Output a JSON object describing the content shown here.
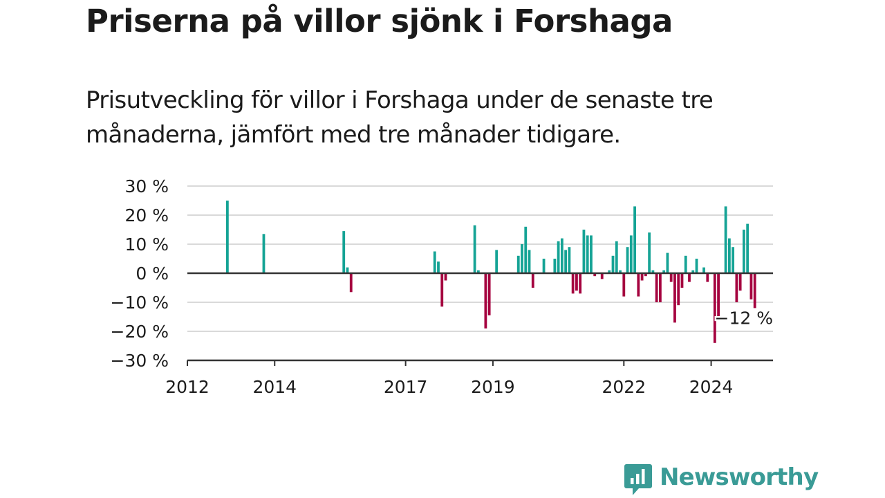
{
  "header": {
    "title": "Priserna på villor sjönk i Forshaga",
    "subtitle": "Prisutveckling för villor i Forshaga under de senaste tre månaderna, jämfört med tre månader tidigare."
  },
  "branding": {
    "name": "Newsworthy",
    "color": "#3a9b96",
    "icon": "newsworthy-logo-icon"
  },
  "colors": {
    "positive": "#15a395",
    "negative": "#a5033f",
    "grid": "#d9d9d9",
    "axis": "#333333"
  },
  "chart_data": {
    "type": "bar",
    "title": "Priserna på villor sjönk i Forshaga",
    "subtitle": "Prisutveckling för villor i Forshaga under de senaste tre månaderna, jämfört med tre månader tidigare.",
    "xlabel": "",
    "ylabel": "",
    "ylim": [
      -30,
      30
    ],
    "xlim": [
      "2012-01",
      "2025-06"
    ],
    "grid": true,
    "legend": "none",
    "y_ticks": [
      {
        "value": 30,
        "label": "30 %"
      },
      {
        "value": 20,
        "label": "20 %"
      },
      {
        "value": 10,
        "label": "10 %"
      },
      {
        "value": 0,
        "label": "0 %"
      },
      {
        "value": -10,
        "label": "−10 %"
      },
      {
        "value": -20,
        "label": "−20 %"
      },
      {
        "value": -30,
        "label": "−30 %"
      }
    ],
    "x_ticks": [
      {
        "value": "2012-01",
        "label": "2012"
      },
      {
        "value": "2014-01",
        "label": "2014"
      },
      {
        "value": "2017-01",
        "label": "2017"
      },
      {
        "value": "2019-01",
        "label": "2019"
      },
      {
        "value": "2022-01",
        "label": "2022"
      },
      {
        "value": "2024-01",
        "label": "2024"
      }
    ],
    "annotation": {
      "label": "−12 %",
      "date": "2025-05",
      "value": -12
    },
    "series": [
      {
        "values": [
          {
            "date": "2012-12",
            "value": 25
          },
          {
            "date": "2013-10",
            "value": 13.5
          },
          {
            "date": "2015-08",
            "value": 14.5
          },
          {
            "date": "2015-09",
            "value": 2
          },
          {
            "date": "2015-10",
            "value": -6.5
          },
          {
            "date": "2017-09",
            "value": 7.5
          },
          {
            "date": "2017-10",
            "value": 4
          },
          {
            "date": "2017-11",
            "value": -11.5
          },
          {
            "date": "2017-12",
            "value": -2.5
          },
          {
            "date": "2018-08",
            "value": 16.5
          },
          {
            "date": "2018-09",
            "value": 1
          },
          {
            "date": "2018-11",
            "value": -19
          },
          {
            "date": "2018-12",
            "value": -14.5
          },
          {
            "date": "2019-02",
            "value": 8
          },
          {
            "date": "2019-08",
            "value": 6
          },
          {
            "date": "2019-09",
            "value": 10
          },
          {
            "date": "2019-10",
            "value": 16
          },
          {
            "date": "2019-11",
            "value": 8
          },
          {
            "date": "2019-12",
            "value": -5
          },
          {
            "date": "2020-03",
            "value": 5
          },
          {
            "date": "2020-06",
            "value": 5
          },
          {
            "date": "2020-07",
            "value": 11
          },
          {
            "date": "2020-08",
            "value": 12
          },
          {
            "date": "2020-09",
            "value": 8
          },
          {
            "date": "2020-10",
            "value": 9
          },
          {
            "date": "2020-11",
            "value": -7
          },
          {
            "date": "2020-12",
            "value": -6
          },
          {
            "date": "2021-01",
            "value": -7
          },
          {
            "date": "2021-02",
            "value": 15
          },
          {
            "date": "2021-03",
            "value": 13
          },
          {
            "date": "2021-04",
            "value": 13
          },
          {
            "date": "2021-05",
            "value": -1
          },
          {
            "date": "2021-07",
            "value": -2
          },
          {
            "date": "2021-09",
            "value": 1
          },
          {
            "date": "2021-10",
            "value": 6
          },
          {
            "date": "2021-11",
            "value": 11
          },
          {
            "date": "2021-12",
            "value": 1
          },
          {
            "date": "2022-01",
            "value": -8
          },
          {
            "date": "2022-02",
            "value": 9
          },
          {
            "date": "2022-03",
            "value": 13
          },
          {
            "date": "2022-04",
            "value": 23
          },
          {
            "date": "2022-05",
            "value": -8
          },
          {
            "date": "2022-06",
            "value": -2.5
          },
          {
            "date": "2022-07",
            "value": -1
          },
          {
            "date": "2022-08",
            "value": 14
          },
          {
            "date": "2022-09",
            "value": 1
          },
          {
            "date": "2022-10",
            "value": -10
          },
          {
            "date": "2022-11",
            "value": -10
          },
          {
            "date": "2022-12",
            "value": 1
          },
          {
            "date": "2023-01",
            "value": 7
          },
          {
            "date": "2023-02",
            "value": -3
          },
          {
            "date": "2023-03",
            "value": -17
          },
          {
            "date": "2023-04",
            "value": -11
          },
          {
            "date": "2023-05",
            "value": -5
          },
          {
            "date": "2023-06",
            "value": 6
          },
          {
            "date": "2023-07",
            "value": -3
          },
          {
            "date": "2023-08",
            "value": 1
          },
          {
            "date": "2023-09",
            "value": 5
          },
          {
            "date": "2023-11",
            "value": 2
          },
          {
            "date": "2023-12",
            "value": -3
          },
          {
            "date": "2024-02",
            "value": -24
          },
          {
            "date": "2024-03",
            "value": -15
          },
          {
            "date": "2024-05",
            "value": 23
          },
          {
            "date": "2024-06",
            "value": 12
          },
          {
            "date": "2024-07",
            "value": 9
          },
          {
            "date": "2024-08",
            "value": -10
          },
          {
            "date": "2024-09",
            "value": -6
          },
          {
            "date": "2024-10",
            "value": 15
          },
          {
            "date": "2024-11",
            "value": 17
          },
          {
            "date": "2024-12",
            "value": -9
          },
          {
            "date": "2025-01",
            "value": -12
          }
        ]
      }
    ]
  }
}
